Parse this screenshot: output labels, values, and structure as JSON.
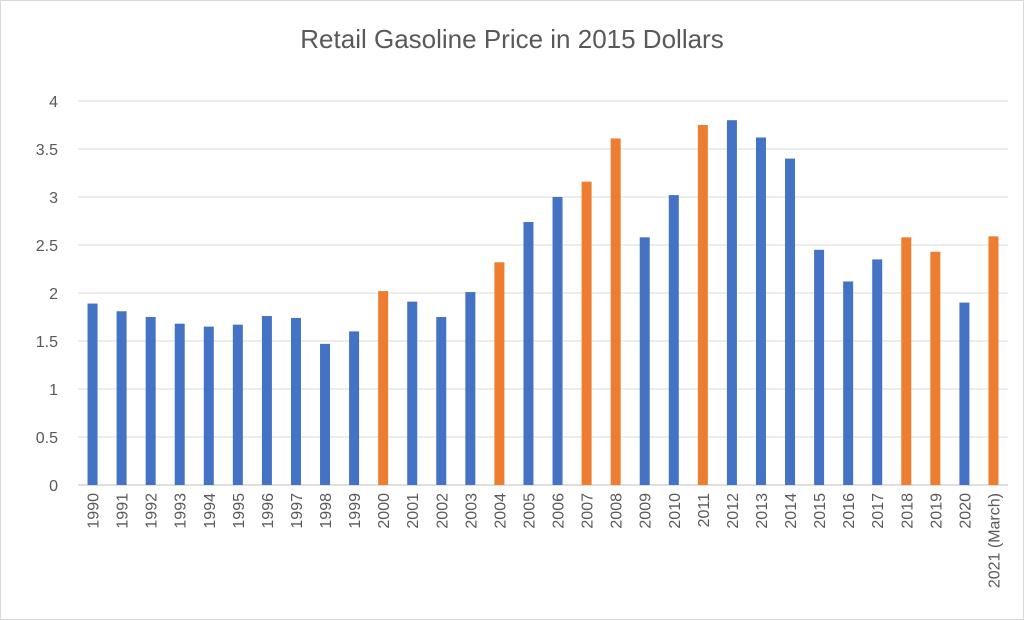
{
  "chart_data": {
    "type": "bar",
    "title": "Retail Gasoline Price in 2015 Dollars",
    "xlabel": "",
    "ylabel": "",
    "ylim": [
      0,
      4
    ],
    "yticks": [
      0,
      0.5,
      1,
      1.5,
      2,
      2.5,
      3,
      3.5,
      4
    ],
    "ytick_labels": [
      "0",
      "0.5",
      "1",
      "1.5",
      "2",
      "2.5",
      "3",
      "3.5",
      "4"
    ],
    "grid": true,
    "categories": [
      "1990",
      "1991",
      "1992",
      "1993",
      "1994",
      "1995",
      "1996",
      "1997",
      "1998",
      "1999",
      "2000",
      "2001",
      "2002",
      "2003",
      "2004",
      "2005",
      "2006",
      "2007",
      "2008",
      "2009",
      "2010",
      "2011",
      "2012",
      "2013",
      "2014",
      "2015",
      "2016",
      "2017",
      "2018",
      "2019",
      "2020",
      "2021 (March)"
    ],
    "values": [
      1.89,
      1.81,
      1.75,
      1.68,
      1.65,
      1.67,
      1.76,
      1.74,
      1.47,
      1.6,
      2.02,
      1.91,
      1.75,
      2.01,
      2.32,
      2.74,
      3.0,
      3.16,
      3.61,
      2.58,
      3.02,
      3.75,
      3.8,
      3.62,
      3.4,
      2.45,
      2.12,
      2.35,
      2.58,
      2.43,
      1.9,
      2.59
    ],
    "highlighted": [
      false,
      false,
      false,
      false,
      false,
      false,
      false,
      false,
      false,
      false,
      true,
      false,
      false,
      false,
      true,
      false,
      false,
      true,
      true,
      false,
      false,
      true,
      false,
      false,
      false,
      false,
      false,
      false,
      true,
      true,
      false,
      true
    ],
    "colors": {
      "default": "#4472C4",
      "highlight": "#ED7D31",
      "grid": "#d9d9d9",
      "axis": "#bfbfbf"
    }
  }
}
